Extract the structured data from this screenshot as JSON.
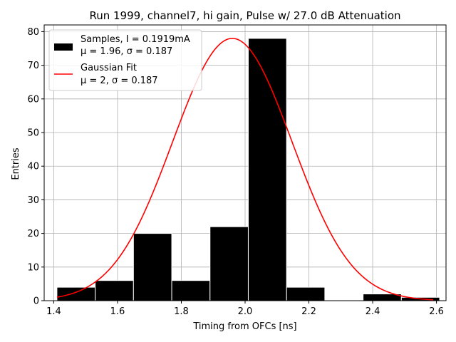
{
  "chart_data": {
    "type": "bar",
    "title": "Run 1999, channel7, hi gain, Pulse w/ 27.0 dB Attenuation",
    "xlabel": "Timing from OFCs [ns]",
    "ylabel": "Entries",
    "xlim": [
      1.37,
      2.63
    ],
    "ylim": [
      0,
      82
    ],
    "xticks": [
      1.4,
      1.6,
      1.8,
      2.0,
      2.2,
      2.4,
      2.6
    ],
    "xtick_labels": [
      "1.4",
      "1.6",
      "1.8",
      "2.0",
      "2.2",
      "2.4",
      "2.6"
    ],
    "yticks": [
      0,
      10,
      20,
      30,
      40,
      50,
      60,
      70,
      80
    ],
    "ytick_labels": [
      "0",
      "10",
      "20",
      "30",
      "40",
      "50",
      "60",
      "70",
      "80"
    ],
    "grid": true,
    "histogram": {
      "name": "Samples",
      "color": "#000000",
      "bins": [
        {
          "start": 1.41,
          "end": 1.53,
          "count": 4
        },
        {
          "start": 1.53,
          "end": 1.65,
          "count": 6
        },
        {
          "start": 1.65,
          "end": 1.77,
          "count": 20
        },
        {
          "start": 1.77,
          "end": 1.89,
          "count": 6
        },
        {
          "start": 1.89,
          "end": 2.01,
          "count": 22
        },
        {
          "start": 2.01,
          "end": 2.13,
          "count": 78
        },
        {
          "start": 2.13,
          "end": 2.25,
          "count": 4
        },
        {
          "start": 2.25,
          "end": 2.37,
          "count": 0
        },
        {
          "start": 2.37,
          "end": 2.49,
          "count": 2
        },
        {
          "start": 2.49,
          "end": 2.61,
          "count": 1
        }
      ]
    },
    "fit": {
      "name": "Gaussian Fit",
      "color": "#ff0000",
      "mu": 1.96,
      "sigma": 0.187,
      "amplitude": 78,
      "x_range": [
        1.41,
        2.59
      ]
    },
    "legend": {
      "position": "top-left",
      "entries": [
        {
          "line1": "Samples, I = 0.1919mA",
          "line2": "μ = 1.96, σ = 0.187"
        },
        {
          "line1": "Gaussian Fit",
          "line2": "μ = 2, σ = 0.187"
        }
      ]
    }
  }
}
